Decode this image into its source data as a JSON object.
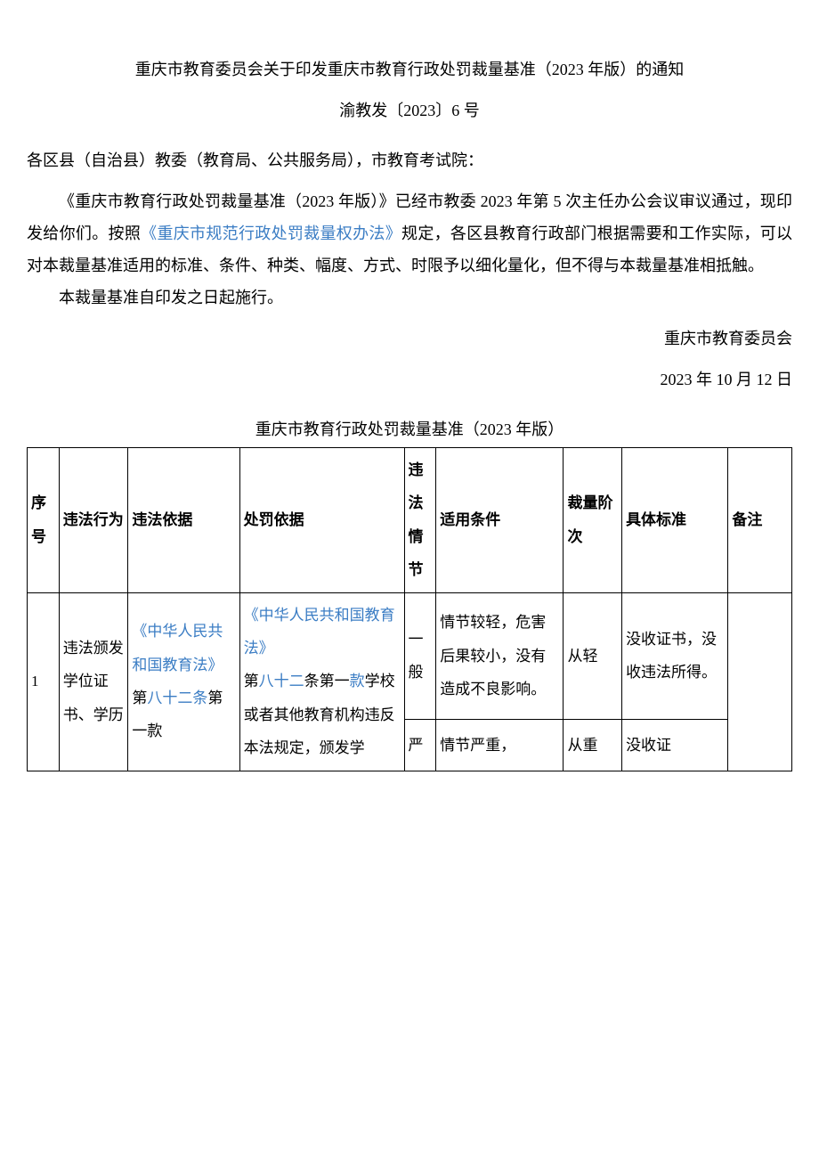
{
  "doc": {
    "title": "重庆市教育委员会关于印发重庆市教育行政处罚裁量基准（2023 年版）的通知",
    "subtitle": "渝教发〔2023〕6 号",
    "addressee": "各区县（自治县）教委（教育局、公共服务局），市教育考试院：",
    "para1_a": "《重庆市教育行政处罚裁量基准（2023 年版）》已经市教委 2023 年第 5 次主任办公会议审议通过，现印发给你们。按照",
    "para1_link": "《重庆市规范行政处罚裁量权办法》",
    "para1_b": "规定，各区县教育行政部门根据需要和工作实际，可以对本裁量基准适用的标准、条件、种类、幅度、方式、时限予以细化量化，但不得与本裁量基准相抵触。",
    "para2": "本裁量基准自印发之日起施行。",
    "sig_org": "重庆市教育委员会",
    "sig_date": "2023 年 10 月 12 日",
    "table_title": "重庆市教育行政处罚裁量基准（2023 年版）"
  },
  "table": {
    "headers": {
      "seq": "序号",
      "act": "违法行为",
      "basis1": "违法依据",
      "basis2": "处罚依据",
      "circ": "违法情节",
      "cond": "适用条件",
      "level": "裁量阶次",
      "std": "具体标准",
      "note": "备注"
    },
    "rows": [
      {
        "seq": "1",
        "act": "违法颁发学位证书、学历",
        "basis1_link1": "《中华人民共和国教育法》",
        "basis1_plain1": "第",
        "basis1_link2": "八十二条",
        "basis1_plain2": "第一款",
        "basis2_link1": "《中华人民共和国教育法》",
        "basis2_plain1": "第",
        "basis2_link2": "八十二",
        "basis2_plain2": "条第一",
        "basis2_link3": "款",
        "basis2_plain3": "学校或者其他教育机构违反本法规定，颁发学",
        "sub": [
          {
            "circ": "一般",
            "cond": "情节较轻，危害后果较小，没有造成不良影响。",
            "level": "从轻",
            "std": "没收证书，没收违法所得。"
          },
          {
            "circ": "严",
            "cond": "情节严重，",
            "level": "从重",
            "std": "没收证"
          }
        ],
        "note": ""
      }
    ]
  },
  "colors": {
    "link": "#3b7dc4",
    "text": "#000000",
    "border": "#000000",
    "bg": "#ffffff"
  }
}
